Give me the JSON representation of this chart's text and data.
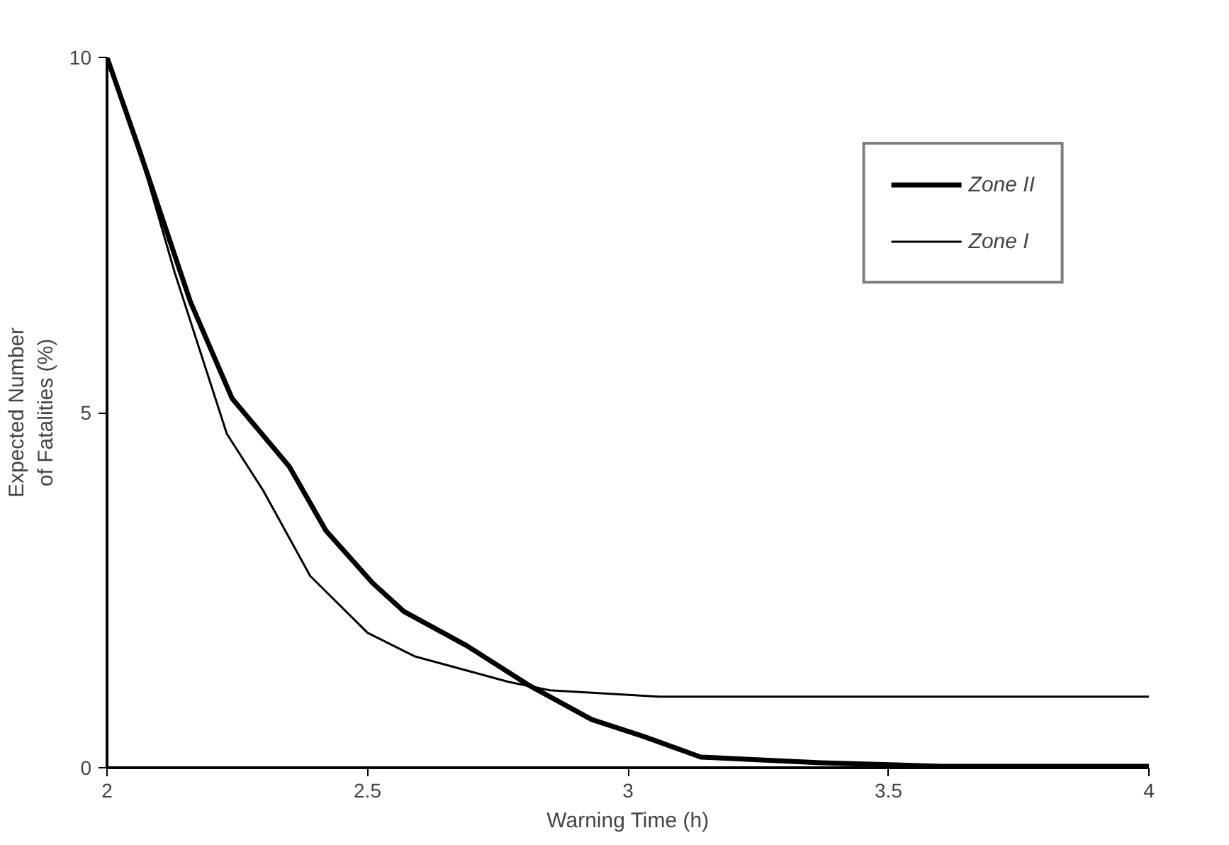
{
  "chart_data": {
    "type": "line",
    "xlabel": "Warning Time (h)",
    "ylabel": "Expected Number\nof Fatalities (%)",
    "xlim": [
      2,
      4
    ],
    "ylim": [
      0,
      10
    ],
    "xticks": [
      2,
      2.5,
      3,
      3.5,
      4
    ],
    "yticks": [
      0,
      5,
      10
    ],
    "grid": false,
    "legend": "top right",
    "marker": "none",
    "line_style": "solid",
    "series": [
      {
        "name": "Zone II",
        "color": "#000000",
        "x": [
          2,
          2.06,
          2.16,
          2.24,
          2.35,
          2.42,
          2.51,
          2.57,
          2.69,
          2.81,
          2.93,
          3.03,
          3.14,
          3.37,
          3.6,
          4
        ],
        "values": [
          10,
          8.74,
          6.56,
          5.2,
          4.24,
          3.34,
          2.6,
          2.2,
          1.72,
          1.16,
          0.68,
          0.44,
          0.15,
          0.07,
          0.02,
          0.02
        ]
      },
      {
        "name": "Zone I",
        "color": "#000000",
        "x": [
          2,
          2.06,
          2.13,
          2.23,
          2.3,
          2.39,
          2.5,
          2.59,
          2.77,
          2.85,
          3.06,
          4
        ],
        "values": [
          10,
          8.74,
          6.97,
          4.7,
          3.9,
          2.7,
          1.9,
          1.57,
          1.21,
          1.09,
          1.0,
          1.0
        ]
      }
    ]
  }
}
